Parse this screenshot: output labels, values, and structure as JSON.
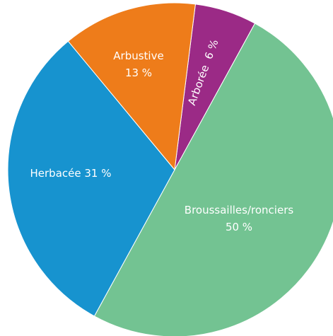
{
  "chart_data": {
    "type": "pie",
    "slices": [
      {
        "label": "Arborée",
        "value": 6,
        "value_text": "6 %",
        "color": "#9b2a86"
      },
      {
        "label": "Broussailles/ronciers",
        "value": 50,
        "value_text": "50 %",
        "color": "#73c392"
      },
      {
        "label": "Herbacée",
        "value": 31,
        "value_text": "31 %",
        "color": "#1793cf"
      },
      {
        "label": "Arbustive",
        "value": 13,
        "value_text": "13 %",
        "color": "#ee7c1a"
      }
    ]
  }
}
